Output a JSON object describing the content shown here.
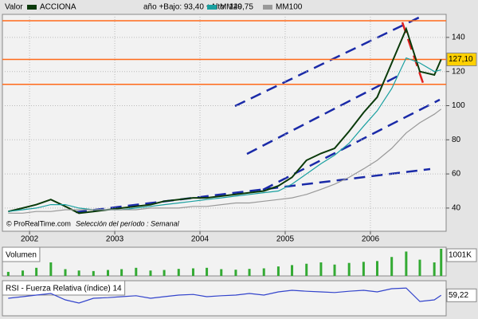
{
  "chart_data": [
    {
      "type": "line",
      "label": "Valor",
      "subtitle": "año +Bajo: 93,40 +Alto: 149,75",
      "credit": "© ProRealTime.com",
      "period": "Selección del período : Semanal",
      "x": [
        2001.75,
        2001.92,
        2002.08,
        2002.25,
        2002.42,
        2002.58,
        2002.75,
        2002.92,
        2003.08,
        2003.25,
        2003.42,
        2003.58,
        2003.75,
        2003.92,
        2004.08,
        2004.25,
        2004.42,
        2004.58,
        2004.75,
        2004.92,
        2005.08,
        2005.25,
        2005.42,
        2005.58,
        2005.75,
        2005.92,
        2006.08,
        2006.25,
        2006.42,
        2006.58,
        2006.75,
        2006.83
      ],
      "series": [
        {
          "name": "ACCIONA",
          "color": "#0a3a0a",
          "values": [
            38,
            40,
            42,
            45,
            41,
            37,
            38,
            39,
            40,
            41,
            42,
            44,
            45,
            46,
            46,
            47,
            48,
            49,
            50,
            53,
            58,
            68,
            72,
            75,
            85,
            96,
            105,
            125,
            145,
            120,
            118,
            127.1
          ],
          "value_labels": [
            null,
            null,
            null,
            null,
            null,
            null,
            null,
            null,
            null,
            null,
            null,
            null,
            null,
            null,
            null,
            null,
            null,
            null,
            null,
            null,
            null,
            null,
            null,
            null,
            null,
            null,
            null,
            null,
            null,
            null,
            null,
            "127,10"
          ]
        },
        {
          "name": "MM20",
          "color": "#1aa0a0",
          "values": [
            38,
            39,
            40,
            42,
            42,
            40,
            39,
            39,
            39,
            40,
            41,
            42,
            43,
            44,
            45,
            46,
            47,
            48,
            49,
            50,
            54,
            60,
            66,
            71,
            78,
            88,
            97,
            110,
            128,
            125,
            120,
            121
          ]
        },
        {
          "name": "MM100",
          "color": "#999999",
          "values": [
            37,
            37,
            38,
            38,
            39,
            39,
            39,
            39,
            39,
            39,
            40,
            40,
            40,
            41,
            41,
            42,
            43,
            43,
            44,
            45,
            46,
            48,
            51,
            54,
            58,
            63,
            68,
            75,
            84,
            90,
            95,
            98
          ]
        }
      ],
      "hlines": [
        149.75,
        127.1,
        112.5
      ],
      "hline_color": "#ff6a1a",
      "xlim": [
        2001.7,
        2006.87
      ],
      "xticks": [
        2002,
        2003,
        2004,
        2005,
        2006
      ],
      "ylim": [
        26.4,
        153.5
      ],
      "yticks": [
        40,
        60,
        80,
        100,
        120,
        140
      ],
      "grid": true
    },
    {
      "type": "bar",
      "title": "Volumen",
      "x": [
        2001.75,
        2001.92,
        2002.08,
        2002.25,
        2002.42,
        2002.58,
        2002.75,
        2002.92,
        2003.08,
        2003.25,
        2003.42,
        2003.58,
        2003.75,
        2003.92,
        2004.08,
        2004.25,
        2004.42,
        2004.58,
        2004.75,
        2004.92,
        2005.08,
        2005.25,
        2005.42,
        2005.58,
        2005.75,
        2005.92,
        2006.08,
        2006.25,
        2006.42,
        2006.58,
        2006.75,
        2006.83
      ],
      "series": [
        {
          "name": "Volumen",
          "color": "#33aa33",
          "values": [
            150,
            200,
            300,
            500,
            250,
            200,
            180,
            220,
            250,
            300,
            200,
            220,
            260,
            280,
            300,
            250,
            230,
            260,
            280,
            350,
            400,
            450,
            500,
            420,
            480,
            520,
            550,
            700,
            900,
            600,
            500,
            1001
          ],
          "value_labels": [
            null,
            null,
            null,
            null,
            null,
            null,
            null,
            null,
            null,
            null,
            null,
            null,
            null,
            null,
            null,
            null,
            null,
            null,
            null,
            null,
            null,
            null,
            null,
            null,
            null,
            null,
            null,
            null,
            null,
            null,
            null,
            "1001K"
          ]
        }
      ],
      "xlim": [
        2001.7,
        2006.87
      ]
    },
    {
      "type": "line",
      "title": "RSI - Fuerza Relativa (índice) 14",
      "x": [
        2001.75,
        2001.92,
        2002.08,
        2002.25,
        2002.42,
        2002.58,
        2002.75,
        2002.92,
        2003.08,
        2003.25,
        2003.42,
        2003.58,
        2003.75,
        2003.92,
        2004.08,
        2004.25,
        2004.42,
        2004.58,
        2004.75,
        2004.92,
        2005.08,
        2005.25,
        2005.42,
        2005.58,
        2005.75,
        2005.92,
        2006.08,
        2006.25,
        2006.42,
        2006.58,
        2006.75,
        2006.83
      ],
      "series": [
        {
          "name": "RSI",
          "color": "#3344cc",
          "values": [
            50,
            55,
            60,
            65,
            45,
            35,
            50,
            52,
            55,
            58,
            50,
            55,
            60,
            62,
            55,
            58,
            60,
            65,
            60,
            70,
            75,
            72,
            70,
            68,
            72,
            75,
            70,
            80,
            82,
            40,
            45,
            59.22
          ],
          "value_labels": [
            null,
            null,
            null,
            null,
            null,
            null,
            null,
            null,
            null,
            null,
            null,
            null,
            null,
            null,
            null,
            null,
            null,
            null,
            null,
            null,
            null,
            null,
            null,
            null,
            null,
            null,
            null,
            null,
            null,
            null,
            null,
            "59,22"
          ]
        }
      ],
      "xlim": [
        2001.7,
        2006.87
      ],
      "ylim": [
        0,
        100
      ]
    }
  ]
}
